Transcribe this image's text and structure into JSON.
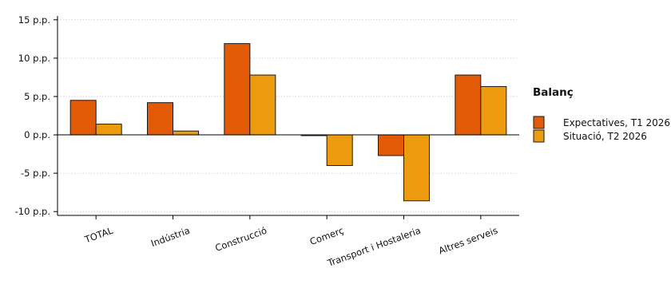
{
  "chart_data": {
    "type": "bar",
    "title": "",
    "xlabel": "",
    "ylabel": "",
    "categories": [
      "TOTAL",
      "Indústria",
      "Construcció",
      "Comerç",
      "Transport i Hostaleria",
      "Altres serveis"
    ],
    "series": [
      {
        "name": "Expectatives, T1 2026",
        "color": "#e35a06",
        "values": [
          4.5,
          4.2,
          11.9,
          -0.1,
          -2.7,
          7.8
        ]
      },
      {
        "name": "Situació, T2 2026",
        "color": "#ec9a0e",
        "values": [
          1.4,
          0.5,
          7.8,
          -4.0,
          -8.6,
          6.3
        ]
      }
    ],
    "ylim": [
      -10.5,
      15.5
    ],
    "y_ticks": [
      {
        "value": 15,
        "label": "15 p.p."
      },
      {
        "value": 10,
        "label": "10 p.p."
      },
      {
        "value": 5,
        "label": "5 p.p."
      },
      {
        "value": 0,
        "label": "0 p.p."
      },
      {
        "value": -5,
        "label": "-5 p.p."
      },
      {
        "value": -10,
        "label": "-10 p.p."
      }
    ],
    "grid": true,
    "legend": {
      "title": "Balanç",
      "position": "right"
    }
  }
}
